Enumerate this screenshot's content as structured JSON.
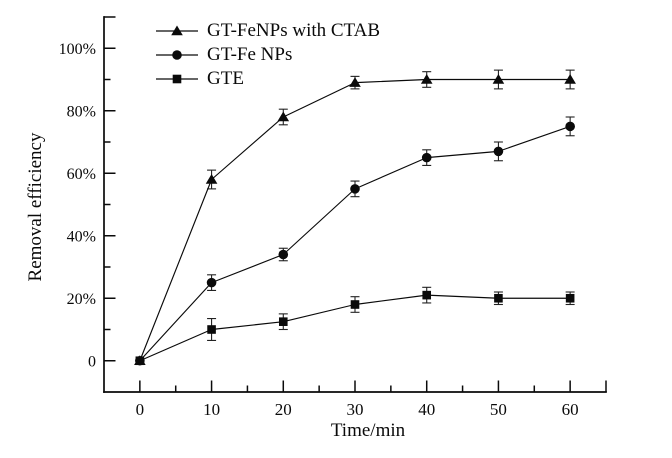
{
  "figure": {
    "background": "#ffffff",
    "ink_color": "#0a0a0a",
    "error_bar_color": "#222222"
  },
  "chart_data": {
    "type": "line",
    "title": "",
    "xlabel": "Time/min",
    "ylabel": "Removal efficiency",
    "x": [
      0,
      10,
      20,
      30,
      40,
      50,
      60
    ],
    "xlim": [
      -5,
      65
    ],
    "ylim": [
      -10,
      110
    ],
    "grid": false,
    "legend_position": "top-left-inside",
    "x_ticks": {
      "major": [
        {
          "v": 0,
          "label": "0"
        },
        {
          "v": 10,
          "label": "10"
        },
        {
          "v": 20,
          "label": "20"
        },
        {
          "v": 30,
          "label": "30"
        },
        {
          "v": 40,
          "label": "40"
        },
        {
          "v": 50,
          "label": "50"
        },
        {
          "v": 60,
          "label": "60"
        }
      ],
      "minor": [
        5,
        15,
        25,
        35,
        45,
        55
      ],
      "end": [
        65
      ]
    },
    "y_ticks": {
      "major": [
        {
          "v": 0,
          "label": "0"
        },
        {
          "v": 20,
          "label": "20%"
        },
        {
          "v": 40,
          "label": "40%"
        },
        {
          "v": 60,
          "label": "60%"
        },
        {
          "v": 80,
          "label": "80%"
        },
        {
          "v": 100,
          "label": "100%"
        }
      ],
      "minor": [
        10,
        30,
        50,
        70,
        90
      ],
      "end": [
        110
      ]
    },
    "series": [
      {
        "name": "GT-FeNPs with CTAB",
        "marker": "triangle",
        "color": "#0a0a0a",
        "values": [
          0,
          58,
          78,
          89,
          90,
          90,
          90
        ],
        "errors": [
          0,
          3,
          2.5,
          2,
          2.5,
          3,
          3
        ]
      },
      {
        "name": "GT-Fe NPs",
        "marker": "circle",
        "color": "#0a0a0a",
        "values": [
          0,
          25,
          34,
          55,
          65,
          67,
          75
        ],
        "errors": [
          0,
          2.5,
          2,
          2.5,
          2.5,
          3,
          3
        ]
      },
      {
        "name": "GTE",
        "marker": "square",
        "color": "#0a0a0a",
        "values": [
          0,
          10,
          12.5,
          18,
          21,
          20,
          20
        ],
        "errors": [
          0,
          3.5,
          2.5,
          2.5,
          2.5,
          2,
          2
        ]
      }
    ]
  }
}
